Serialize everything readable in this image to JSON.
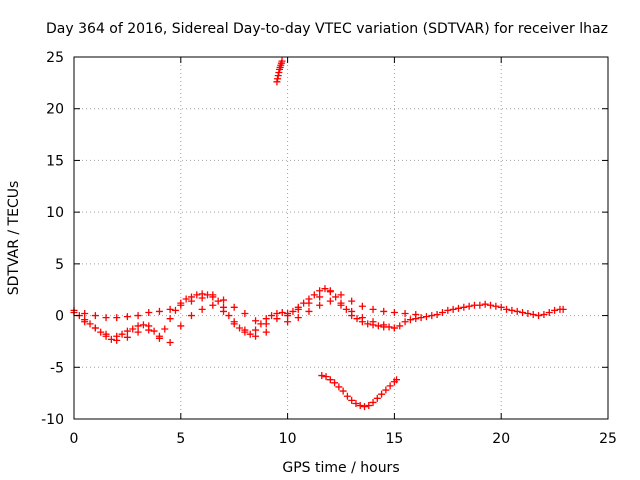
{
  "chart_data": {
    "type": "scatter",
    "title": "Day 364 of 2016, Sidereal Day-to-day VTEC variation (SDTVAR) for receiver lhaz",
    "xlabel": "GPS time / hours",
    "ylabel": "SDTVAR / TECUs",
    "xlim": [
      0,
      25
    ],
    "ylim": [
      -10,
      25
    ],
    "x_ticks": [
      "0",
      "5",
      "10",
      "15",
      "20",
      "25"
    ],
    "y_ticks": [
      "-10",
      "-5",
      "0",
      "5",
      "10",
      "15",
      "20",
      "25"
    ],
    "grid": true,
    "marker": "+",
    "color": "#ff0000",
    "series": [
      {
        "name": "main",
        "x": [
          0.0,
          0.25,
          0.5,
          0.75,
          1.0,
          1.25,
          1.5,
          1.75,
          2.0,
          2.25,
          2.5,
          2.75,
          3.0,
          3.25,
          3.5,
          3.75,
          4.0,
          4.25,
          4.5,
          4.75,
          5.0,
          5.25,
          5.5,
          5.75,
          6.0,
          6.25,
          6.5,
          6.75,
          7.0,
          7.25,
          7.5,
          7.75,
          8.0,
          8.25,
          8.5,
          8.75,
          9.0,
          9.25,
          9.5,
          9.75,
          10.0,
          10.25,
          10.5,
          10.75,
          11.0,
          11.25,
          11.5,
          11.75,
          12.0,
          12.25,
          12.5,
          12.75,
          13.0,
          13.25,
          13.5,
          13.75,
          14.0,
          14.25,
          14.5,
          14.75,
          15.0,
          15.25,
          15.5,
          15.75,
          16.0,
          16.25,
          16.5,
          16.75,
          17.0,
          17.25,
          17.5,
          17.75,
          18.0,
          18.25,
          18.5,
          18.75,
          19.0,
          19.25,
          19.5,
          19.75,
          20.0,
          20.25,
          20.5,
          20.75,
          21.0,
          21.25,
          21.5,
          21.75,
          22.0,
          22.25,
          22.5,
          22.75,
          22.9
        ],
        "y": [
          0.3,
          0.0,
          -0.4,
          -0.8,
          -1.2,
          -1.6,
          -2.0,
          -2.3,
          -2.0,
          -1.8,
          -1.5,
          -1.3,
          -1.0,
          -0.9,
          -1.0,
          -1.5,
          -2.2,
          -1.3,
          -0.3,
          0.5,
          1.2,
          1.6,
          1.8,
          2.0,
          2.1,
          2.0,
          1.8,
          1.4,
          0.8,
          0.0,
          -0.8,
          -1.2,
          -1.6,
          -1.8,
          -1.4,
          -0.8,
          -0.3,
          0.0,
          0.2,
          0.3,
          0.2,
          0.4,
          0.8,
          1.2,
          1.6,
          2.0,
          2.4,
          2.6,
          2.3,
          1.8,
          1.2,
          0.6,
          0.0,
          -0.3,
          -0.6,
          -0.8,
          -0.9,
          -1.0,
          -1.1,
          -1.1,
          -1.2,
          -1.0,
          -0.6,
          -0.4,
          -0.3,
          -0.2,
          -0.1,
          0.0,
          0.1,
          0.3,
          0.5,
          0.6,
          0.7,
          0.8,
          0.9,
          1.0,
          1.0,
          1.1,
          1.0,
          0.9,
          0.8,
          0.6,
          0.5,
          0.4,
          0.3,
          0.2,
          0.1,
          0.0,
          0.1,
          0.3,
          0.5,
          0.6,
          0.6
        ]
      },
      {
        "name": "upper-band",
        "x": [
          0.0,
          0.5,
          1.0,
          1.5,
          2.0,
          2.5,
          3.0,
          3.5,
          4.0,
          4.5,
          5.0,
          5.5,
          6.0,
          6.5,
          7.0,
          7.5,
          8.0,
          8.5,
          9.0,
          9.5,
          10.0,
          10.5,
          11.0,
          11.5,
          12.0,
          12.5,
          13.0,
          13.5,
          14.0,
          14.5,
          15.0,
          15.5,
          16.0
        ],
        "y": [
          0.5,
          0.2,
          0.0,
          -0.2,
          -0.2,
          -0.1,
          0.0,
          0.3,
          0.4,
          0.6,
          1.0,
          1.4,
          1.7,
          2.0,
          1.5,
          0.8,
          0.2,
          -0.5,
          -0.8,
          -0.3,
          0.0,
          0.6,
          1.2,
          1.8,
          2.4,
          2.0,
          1.4,
          0.9,
          0.6,
          0.4,
          0.3,
          0.2,
          0.1
        ]
      },
      {
        "name": "lower-band",
        "x": [
          0.5,
          1.0,
          1.5,
          2.0,
          2.5,
          3.0,
          3.5,
          4.0,
          4.5,
          5.0,
          5.5,
          6.0,
          6.5,
          7.0,
          7.5,
          8.0,
          8.5,
          9.0,
          10.0,
          10.5,
          11.0,
          11.5,
          12.0,
          12.5,
          13.0,
          13.5,
          14.0,
          14.5,
          15.0
        ],
        "y": [
          -0.6,
          -1.2,
          -1.8,
          -2.4,
          -2.1,
          -1.6,
          -1.4,
          -2.0,
          -2.6,
          -1.0,
          0.0,
          0.6,
          1.0,
          0.4,
          -0.6,
          -1.4,
          -2.0,
          -1.6,
          -0.6,
          -0.2,
          0.4,
          1.0,
          1.4,
          1.0,
          0.4,
          -0.2,
          -0.6,
          -0.9,
          -1.2
        ]
      },
      {
        "name": "arc",
        "x": [
          11.6,
          11.8,
          12.0,
          12.2,
          12.4,
          12.6,
          12.8,
          13.0,
          13.2,
          13.4,
          13.6,
          13.8,
          14.0,
          14.2,
          14.4,
          14.6,
          14.8,
          15.0,
          15.1
        ],
        "y": [
          -5.8,
          -5.9,
          -6.2,
          -6.5,
          -6.9,
          -7.3,
          -7.8,
          -8.2,
          -8.5,
          -8.7,
          -8.8,
          -8.7,
          -8.4,
          -8.0,
          -7.6,
          -7.2,
          -6.8,
          -6.4,
          -6.2
        ]
      },
      {
        "name": "spike",
        "x": [
          9.5,
          9.53,
          9.56,
          9.59,
          9.62,
          9.65,
          9.68,
          9.71,
          9.74
        ],
        "y": [
          22.6,
          22.9,
          23.2,
          23.5,
          23.8,
          24.0,
          24.2,
          24.4,
          24.6
        ]
      }
    ]
  }
}
